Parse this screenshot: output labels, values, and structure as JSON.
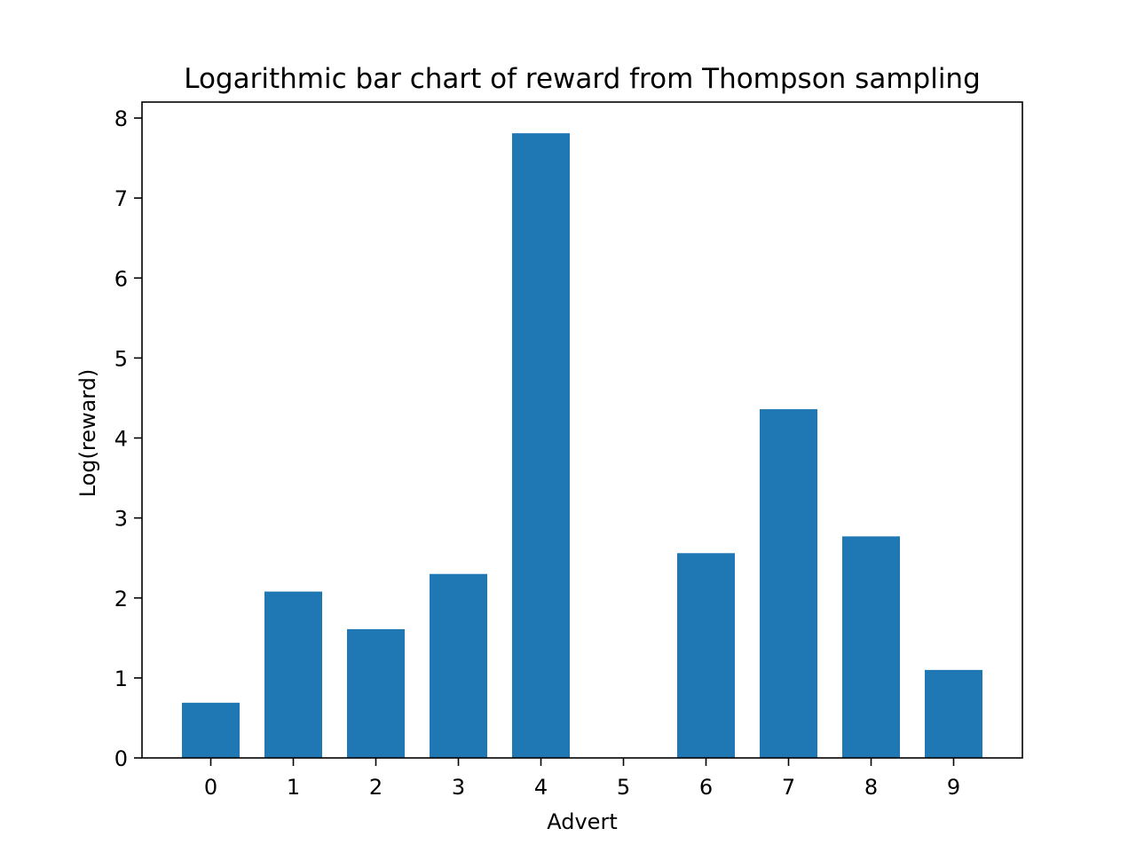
{
  "chart_data": {
    "type": "bar",
    "title": "Logarithmic bar chart of reward from Thompson sampling",
    "xlabel": "Advert",
    "ylabel": "Log(reward)",
    "categories": [
      "0",
      "1",
      "2",
      "3",
      "4",
      "5",
      "6",
      "7",
      "8",
      "9"
    ],
    "values": [
      0.69,
      2.08,
      1.61,
      2.3,
      7.81,
      0,
      2.56,
      4.36,
      2.77,
      1.1
    ],
    "ylim": [
      0,
      8.2
    ],
    "yticks": [
      "0",
      "1",
      "2",
      "3",
      "4",
      "5",
      "6",
      "7",
      "8"
    ],
    "bar_color": "#1f77b4",
    "grid": false,
    "legend": "none"
  }
}
